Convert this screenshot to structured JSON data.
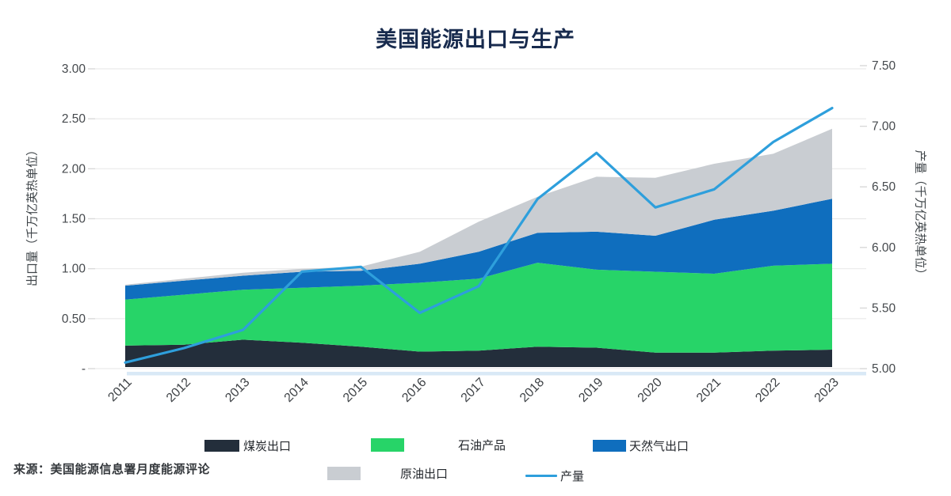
{
  "title": "美国能源出口与生产",
  "source": {
    "text": "来源：美国能源信息署月度能源评论"
  },
  "left_axis": {
    "title": "出口量（千万亿英热单位）",
    "ticks": [
      "3.00",
      "2.50",
      "2.00",
      "1.50",
      "1.00",
      "0.50",
      "-"
    ],
    "tick_values": [
      3.0,
      2.5,
      2.0,
      1.5,
      1.0,
      0.5,
      0
    ],
    "min": 0,
    "max": 3.0
  },
  "right_axis": {
    "title": "产量（千万亿英热单位）",
    "ticks": [
      "7.50",
      "7.00",
      "6.50",
      "6.00",
      "5.50",
      "5.00"
    ],
    "tick_values": [
      7.5,
      7.0,
      6.5,
      6.0,
      5.5,
      5.0
    ],
    "min": 5.0,
    "max": 7.5
  },
  "colors": {
    "title_text": "#182B4E",
    "axis_text": "#45494D",
    "gridline": "#E9E9E9",
    "baseline_strip": "#D9E9F6"
  },
  "chart_data": {
    "type": "area",
    "stacked": true,
    "grid": "horizontal",
    "legend_position": "bottom",
    "x": [
      2011,
      2012,
      2013,
      2014,
      2015,
      2016,
      2017,
      2018,
      2019,
      2020,
      2021,
      2022,
      2023
    ],
    "left_ylim": [
      0,
      3.0
    ],
    "right_ylim": [
      5.0,
      7.5
    ],
    "series": [
      {
        "name": "煤炭出口",
        "type": "area",
        "axis": "left",
        "color": "#232E3B",
        "values": [
          0.23,
          0.24,
          0.29,
          0.26,
          0.22,
          0.17,
          0.18,
          0.22,
          0.21,
          0.16,
          0.16,
          0.18,
          0.19
        ]
      },
      {
        "name": "石油产品",
        "type": "area",
        "axis": "left",
        "color": "#27D468",
        "values": [
          0.46,
          0.5,
          0.5,
          0.55,
          0.61,
          0.69,
          0.72,
          0.84,
          0.78,
          0.81,
          0.79,
          0.85,
          0.86
        ]
      },
      {
        "name": "天然气出口",
        "type": "area",
        "axis": "left",
        "color": "#0F6EBE",
        "values": [
          0.14,
          0.14,
          0.14,
          0.16,
          0.15,
          0.19,
          0.27,
          0.3,
          0.38,
          0.36,
          0.54,
          0.55,
          0.65
        ]
      },
      {
        "name": "原油出口",
        "type": "area",
        "axis": "left",
        "color": "#C9CDD2",
        "values": [
          0.01,
          0.02,
          0.03,
          0.03,
          0.04,
          0.12,
          0.3,
          0.36,
          0.55,
          0.58,
          0.56,
          0.57,
          0.7
        ]
      },
      {
        "name": "产量",
        "type": "line",
        "axis": "right",
        "color": "#2E9FDC",
        "values": [
          5.05,
          5.17,
          5.32,
          5.8,
          5.84,
          5.46,
          5.68,
          6.4,
          6.78,
          6.33,
          6.48,
          6.87,
          7.15
        ]
      }
    ]
  }
}
